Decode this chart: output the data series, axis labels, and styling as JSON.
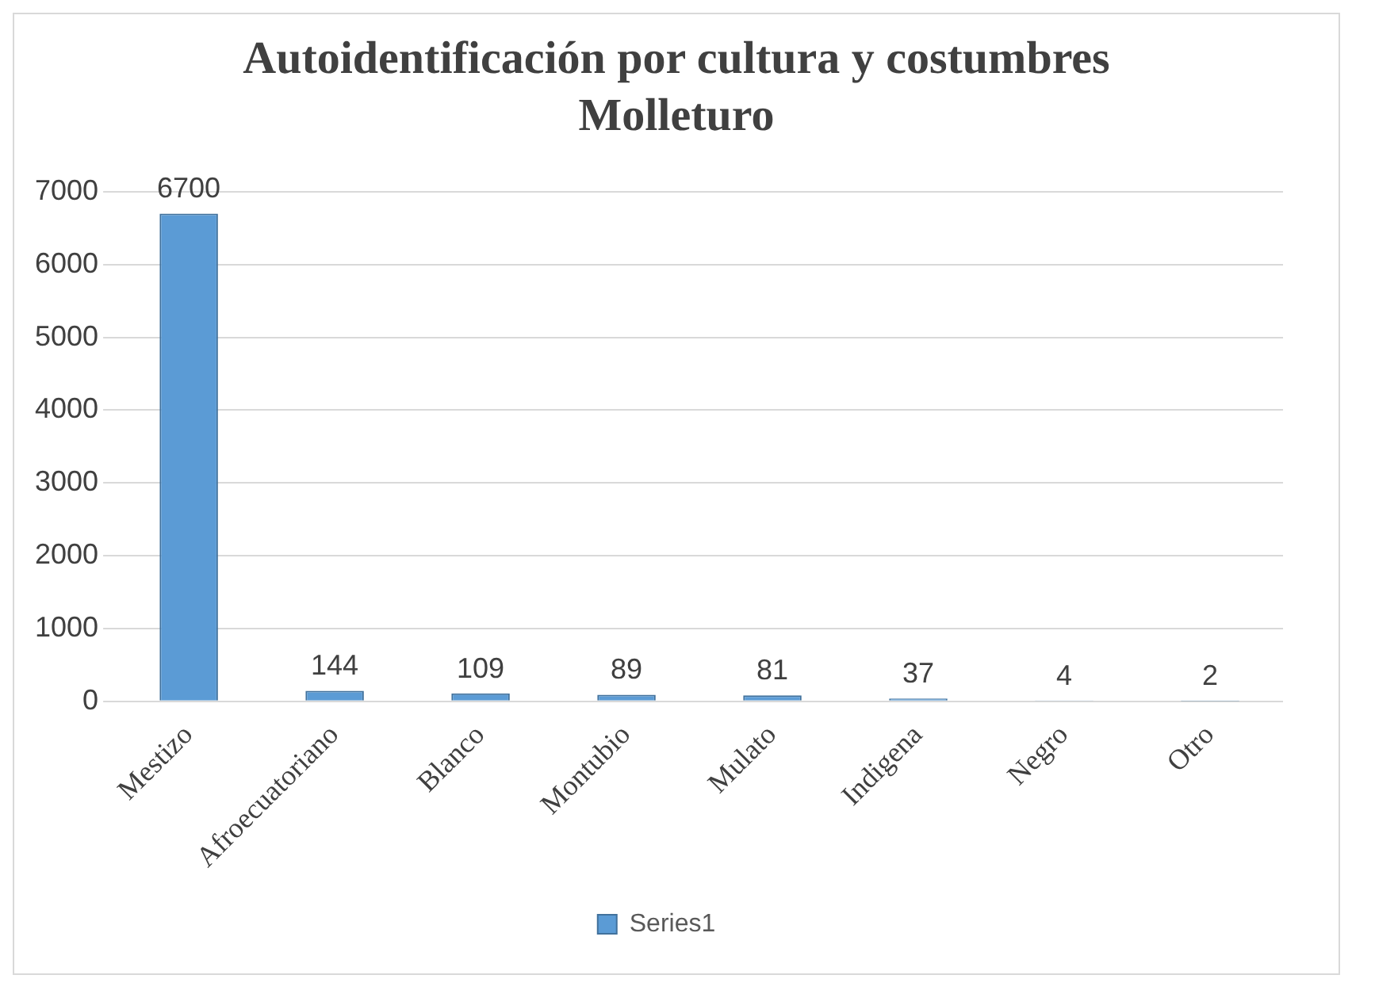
{
  "chart_data": {
    "type": "bar",
    "title": "Autoidentificación por cultura y costumbres Molleturo",
    "categories": [
      "Mestizo",
      "Afroecuatoriano",
      "Blanco",
      "Montubio",
      "Mulato",
      "Indigena",
      "Negro",
      "Otro"
    ],
    "series": [
      {
        "name": "Series1",
        "color": "#5b9bd5",
        "values": [
          6700,
          144,
          109,
          89,
          81,
          37,
          4,
          2
        ]
      }
    ],
    "ylim": [
      0,
      7000
    ],
    "yticks": [
      0,
      1000,
      2000,
      3000,
      4000,
      5000,
      6000,
      7000
    ],
    "grid": "y",
    "legend": "bottom",
    "data_labels": true
  }
}
